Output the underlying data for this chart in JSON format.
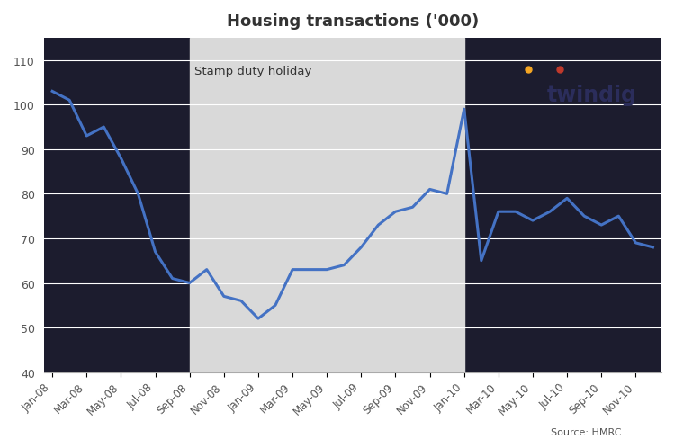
{
  "title": "Housing transactions ('000)",
  "source_text": "Source: HMRC",
  "stamp_duty_label": "Stamp duty holiday",
  "line_color": "#4472C4",
  "plot_bg_color": "#1a1a2e",
  "fig_bg_color": "#1a1a2e",
  "shading_color": "#D9D9D9",
  "grid_color": "#AAAAAA",
  "ylim": [
    40,
    115
  ],
  "yticks": [
    40,
    50,
    60,
    70,
    80,
    90,
    100,
    110
  ],
  "tick_labels": [
    "Jan-08",
    "Mar-08",
    "May-08",
    "Jul-08",
    "Sep-08",
    "Nov-08",
    "Jan-09",
    "Mar-09",
    "May-09",
    "Jul-09",
    "Sep-09",
    "Nov-09",
    "Jan-10",
    "Mar-10",
    "May-10",
    "Jul-10",
    "Sep-10",
    "Nov-10"
  ],
  "data_points": {
    "Jan-08": 103,
    "Feb-08": 101,
    "Mar-08": 93,
    "Apr-08": 95,
    "May-08": 88,
    "Jun-08": 80,
    "Jul-08": 67,
    "Aug-08": 61,
    "Sep-08": 60,
    "Oct-08": 63,
    "Nov-08": 57,
    "Dec-08": 56,
    "Jan-09": 52,
    "Feb-09": 55,
    "Mar-09": 63,
    "Apr-09": 63,
    "May-09": 63,
    "Jun-09": 64,
    "Jul-09": 68,
    "Aug-09": 73,
    "Sep-09": 76,
    "Oct-09": 77,
    "Nov-09": 81,
    "Dec-09": 80,
    "Jan-10": 99,
    "Feb-10": 65,
    "Mar-10": 76,
    "Apr-10": 76,
    "May-10": 74,
    "Jun-10": 76,
    "Jul-10": 79,
    "Aug-10": 75,
    "Sep-10": 73,
    "Oct-10": 75,
    "Nov-10": 69,
    "Dec-10": 68
  },
  "shade_start_month": "Sep-08",
  "twindig_text": "twindig",
  "twindig_color": "#2B2D5B",
  "orange_dot_color": "#F5A623",
  "rust_dot_color": "#C0392B",
  "text_color": "#555555",
  "title_color": "#333333"
}
